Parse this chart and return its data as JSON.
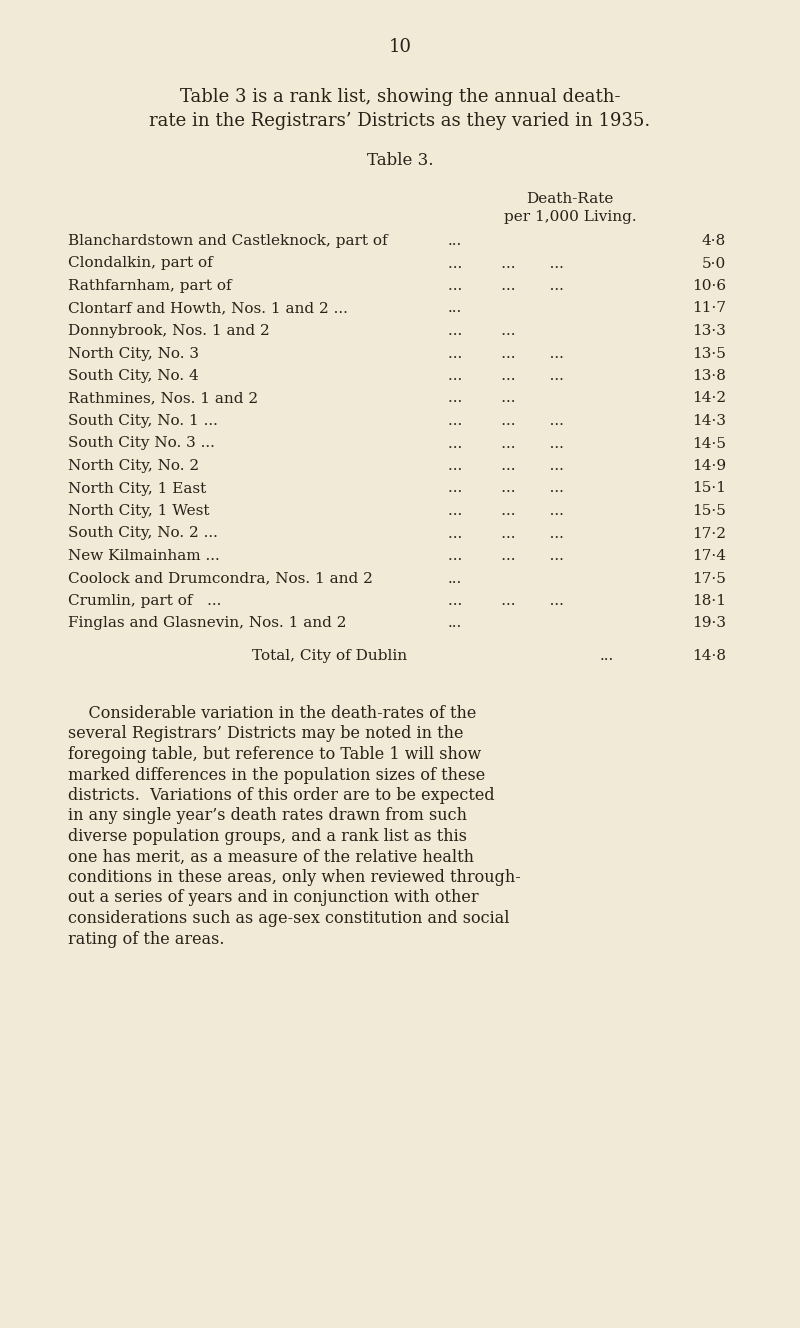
{
  "bg_color": "#f0ead6",
  "text_color": "#2a2118",
  "page_number": "10",
  "intro_line1": "Table 3 is a rank list, showing the annual death-",
  "intro_line2": "rate in the Registrars’ Districts as they varied in 1935.",
  "table_title": "Table 3.",
  "col_header_line1": "Death-Rate",
  "col_header_line2": "per 1,000 Living.",
  "rows": [
    {
      "district": "Blanchardstown and Castleknock, part of",
      "dots": "...",
      "value": "4·8"
    },
    {
      "district": "Clondalkin, part of",
      "dots": "...        ...       ...",
      "value": "5·0"
    },
    {
      "district": "Rathfarnham, part of",
      "dots": "...        ...       ...",
      "value": "10·6"
    },
    {
      "district": "Clontarf and Howth, Nos. 1 and 2 ...",
      "dots": "...",
      "value": "11·7"
    },
    {
      "district": "Donnybrook, Nos. 1 and 2",
      "dots": "...        ...",
      "value": "13·3"
    },
    {
      "district": "North City, No. 3",
      "dots": "...        ...       ...",
      "value": "13·5"
    },
    {
      "district": "South City, No. 4",
      "dots": "...        ...       ...",
      "value": "13·8"
    },
    {
      "district": "Rathmines, Nos. 1 and 2",
      "dots": "...        ...",
      "value": "14·2"
    },
    {
      "district": "South City, No. 1 ...",
      "dots": "...        ...       ...",
      "value": "14·3"
    },
    {
      "district": "South City No. 3 ...",
      "dots": "...        ...       ...",
      "value": "14·5"
    },
    {
      "district": "North City, No. 2",
      "dots": "...        ...       ...",
      "value": "14·9"
    },
    {
      "district": "North City, 1 East",
      "dots": "...        ...       ...",
      "value": "15·1"
    },
    {
      "district": "North City, 1 West",
      "dots": "...        ...       ...",
      "value": "15·5"
    },
    {
      "district": "South City, No. 2 ...",
      "dots": "...        ...       ...",
      "value": "17·2"
    },
    {
      "district": "New Kilmainham ...",
      "dots": "...        ...       ...",
      "value": "17·4"
    },
    {
      "district": "Coolock and Drumcondra, Nos. 1 and 2",
      "dots": "...",
      "value": "17·5"
    },
    {
      "district": "Crumlin, part of   ...",
      "dots": "...        ...       ...",
      "value": "18·1"
    },
    {
      "district": "Finglas and Glasnevin, Nos. 1 and 2",
      "dots": "...",
      "value": "19·3"
    }
  ],
  "total_label": "Total, City of Dublin",
  "total_dots": "...",
  "total_value": "14·8",
  "footer_lines": [
    "    Considerable variation in the death-rates of the",
    "several Registrars’ Districts may be noted in the",
    "foregoing table, but reference to Table 1 will show",
    "marked differences in the population sizes of these",
    "districts.  Variations of this order are to be expected",
    "in any single year’s death rates drawn from such",
    "diverse population groups, and a rank list as this",
    "one has merit, as a measure of the relative health",
    "conditions in these areas, only when reviewed through-",
    "out a series of years and in conjunction with other",
    "considerations such as age-sex constitution and social",
    "rating of the areas."
  ]
}
